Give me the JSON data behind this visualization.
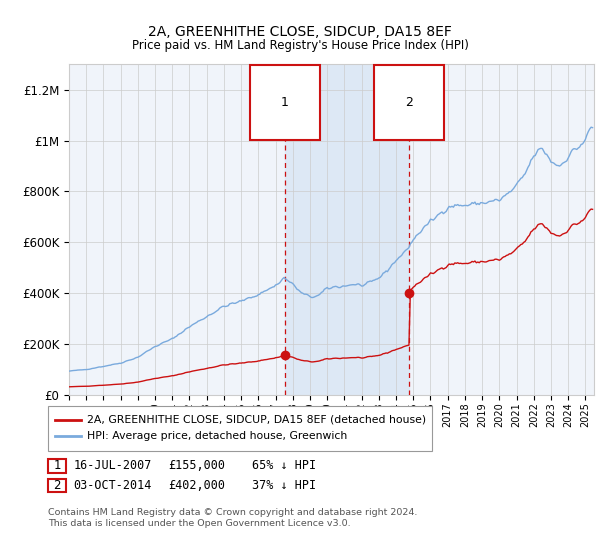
{
  "title": "2A, GREENHITHE CLOSE, SIDCUP, DA15 8EF",
  "subtitle": "Price paid vs. HM Land Registry's House Price Index (HPI)",
  "ylim": [
    0,
    1300000
  ],
  "yticks": [
    0,
    200000,
    400000,
    600000,
    800000,
    1000000,
    1200000
  ],
  "ytick_labels": [
    "£0",
    "£200K",
    "£400K",
    "£600K",
    "£800K",
    "£1M",
    "£1.2M"
  ],
  "hpi_color": "#7aaadd",
  "price_color": "#cc1111",
  "marker1_x": 2007.54,
  "marker1_y": 155000,
  "marker2_x": 2014.75,
  "marker2_y": 402000,
  "marker1_label": "16-JUL-2007",
  "marker1_price": "£155,000",
  "marker1_hpi": "65% ↓ HPI",
  "marker2_label": "03-OCT-2014",
  "marker2_price": "£402,000",
  "marker2_hpi": "37% ↓ HPI",
  "legend1": "2A, GREENHITHE CLOSE, SIDCUP, DA15 8EF (detached house)",
  "legend2": "HPI: Average price, detached house, Greenwich",
  "footnote": "Contains HM Land Registry data © Crown copyright and database right 2024.\nThis data is licensed under the Open Government Licence v3.0.",
  "background_color": "#ffffff",
  "plot_bg_color": "#f0f4fa",
  "shade_color": "#dde8f5",
  "grid_color": "#cccccc",
  "xlim_start": 1995.0,
  "xlim_end": 2025.5
}
